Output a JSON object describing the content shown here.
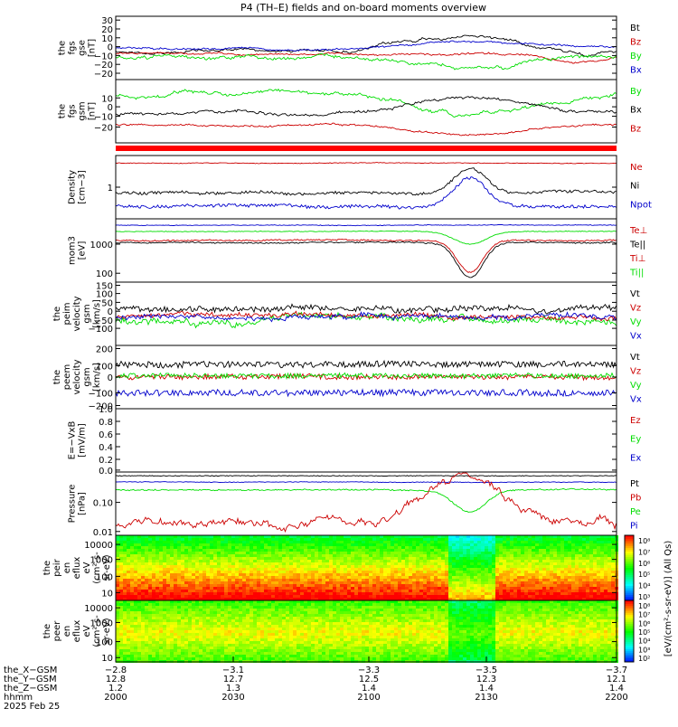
{
  "title": "P4 (TH–E) fields and on-board moments overview",
  "colors": {
    "black": "#000000",
    "red": "#cc0000",
    "green": "#00dd00",
    "blue": "#0000cc"
  },
  "chart_data": [
    {
      "type": "line",
      "ylabel": [
        "the",
        "fgs",
        "gse",
        "[nT]"
      ],
      "yticks": [
        "30",
        "20",
        "10",
        "0",
        "−10",
        "−20",
        "−20"
      ],
      "legend": [
        {
          "name": "Bt",
          "color": "black"
        },
        {
          "name": "Bz",
          "color": "red"
        },
        {
          "name": "By",
          "color": "green"
        },
        {
          "name": "Bx",
          "color": "blue"
        }
      ]
    },
    {
      "type": "line",
      "ylabel": [
        "the",
        "fgs",
        "gsm",
        "[nT]"
      ],
      "yticks": [
        "10",
        "0",
        "−10",
        "−20"
      ],
      "legend": [
        {
          "name": "By",
          "color": "green"
        },
        {
          "name": "Bx",
          "color": "black"
        },
        {
          "name": "Bz",
          "color": "red"
        }
      ]
    },
    {
      "type": "line",
      "ylabel": [
        "Density",
        "[cm−3]"
      ],
      "yticks": [
        "1"
      ],
      "legend": [
        {
          "name": "Ne",
          "color": "red"
        },
        {
          "name": "Ni",
          "color": "black"
        },
        {
          "name": "Npot",
          "color": "blue"
        }
      ]
    },
    {
      "type": "line",
      "ylabel": [
        "mom3",
        "[eV]"
      ],
      "yticks": [
        "1000",
        "100"
      ],
      "legend": [
        {
          "name": "Te⊥",
          "color": "red"
        },
        {
          "name": "Te||",
          "color": "black"
        },
        {
          "name": "Ti⊥",
          "color": "red"
        },
        {
          "name": "Ti||",
          "color": "green"
        }
      ]
    },
    {
      "type": "line",
      "ylabel": [
        "the",
        "peim",
        "velocity",
        "gsm",
        "[km/s]"
      ],
      "yticks": [
        "150",
        "100",
        "50",
        "0",
        "−50",
        "−100"
      ],
      "legend": [
        {
          "name": "Vt",
          "color": "black"
        },
        {
          "name": "Vz",
          "color": "red"
        },
        {
          "name": "Vy",
          "color": "green"
        },
        {
          "name": "Vx",
          "color": "blue"
        }
      ]
    },
    {
      "type": "line",
      "ylabel": [
        "the",
        "peem",
        "velocity",
        "gsm",
        "[km/s]"
      ],
      "yticks": [
        "200",
        "100",
        "0",
        "−100",
        "−200"
      ],
      "legend": [
        {
          "name": "Vt",
          "color": "black"
        },
        {
          "name": "Vz",
          "color": "red"
        },
        {
          "name": "Vy",
          "color": "green"
        },
        {
          "name": "Vx",
          "color": "blue"
        }
      ]
    },
    {
      "type": "line",
      "ylabel": [
        "E=−VxB",
        "[mV/m]"
      ],
      "yticks": [
        "1.0",
        "0.8",
        "0.6",
        "0.4",
        "0.2",
        "0.0"
      ],
      "legend": [
        {
          "name": "Ez",
          "color": "red"
        },
        {
          "name": "Ey",
          "color": "green"
        },
        {
          "name": "Ex",
          "color": "blue"
        }
      ]
    },
    {
      "type": "line",
      "ylabel": [
        "Pressure",
        "[nPa]"
      ],
      "yticks": [
        "0.10",
        "0.01"
      ],
      "legend": [
        {
          "name": "Pt",
          "color": "black"
        },
        {
          "name": "Pb",
          "color": "red"
        },
        {
          "name": "Pe",
          "color": "green"
        },
        {
          "name": "Pi",
          "color": "blue"
        }
      ]
    },
    {
      "type": "heatmap",
      "ylabel": [
        "the",
        "peir",
        "en",
        "eflux",
        "eV",
        "(cm²-s-",
        "sr-eV)"
      ],
      "yticks": [
        "10000",
        "1000",
        "100",
        "10"
      ]
    },
    {
      "type": "heatmap",
      "ylabel": [
        "the",
        "peer",
        "en",
        "eflux",
        "eV",
        "(cm²-s-",
        "sr-eV)"
      ],
      "yticks": [
        "10000",
        "1000",
        "100",
        "10"
      ]
    }
  ],
  "colorbar": {
    "label": "[eV/(cm²-s-sr-eV)] (All Qs)",
    "upper_ticks": [
      "10⁸",
      "10⁷",
      "10⁶",
      "10⁵",
      "10⁴",
      "10³"
    ],
    "lower_ticks": [
      "10⁸",
      "10⁷",
      "10⁶",
      "10⁵",
      "10⁴",
      "10³",
      "10²"
    ]
  },
  "xaxis": {
    "row_labels": [
      "the_X−GSM",
      "the_Y−GSM",
      "the_Z−GSM",
      "hhmm",
      "2025 Feb 25"
    ],
    "ticks": [
      {
        "x": "−2.8",
        "y": "12.8",
        "z": "1.2",
        "t": "2000"
      },
      {
        "x": "−3.1",
        "y": "12.7",
        "z": "1.3",
        "t": "2030"
      },
      {
        "x": "−3.3",
        "y": "12.5",
        "z": "1.4",
        "t": "2100"
      },
      {
        "x": "−3.5",
        "y": "12.3",
        "z": "1.4",
        "t": "2130"
      },
      {
        "x": "−3.7",
        "y": "12.1",
        "z": "1.4",
        "t": "2200"
      }
    ]
  }
}
